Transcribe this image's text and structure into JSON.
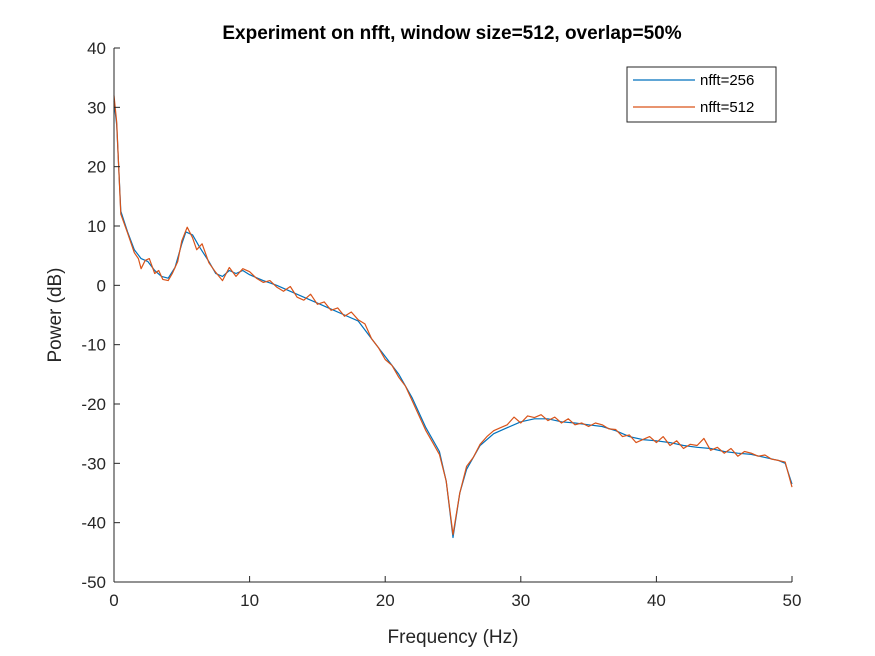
{
  "chart_data": {
    "type": "line",
    "title": "Experiment on nfft, window size=512, overlap=50%",
    "xlabel": "Frequency (Hz)",
    "ylabel": "Power (dB)",
    "xlim": [
      0,
      50
    ],
    "ylim": [
      -50,
      40
    ],
    "xticks": [
      0,
      10,
      20,
      30,
      40,
      50
    ],
    "xtick_labels": [
      "0",
      "10",
      "20",
      "30",
      "40",
      "50"
    ],
    "yticks": [
      40,
      30,
      20,
      10,
      0,
      -10,
      -20,
      -30,
      -40,
      -50
    ],
    "ytick_labels": [
      "40",
      "30",
      "20",
      "10",
      "0",
      "-10",
      "-20",
      "-30",
      "-40",
      "-50"
    ],
    "grid": false,
    "legend_position": "top-right",
    "series": [
      {
        "name": "nfft=256",
        "color": "#0072BD",
        "points": [
          [
            0,
            31
          ],
          [
            0.2,
            27
          ],
          [
            0.5,
            12.5
          ],
          [
            1.0,
            9
          ],
          [
            1.5,
            6
          ],
          [
            2.0,
            4.5
          ],
          [
            2.5,
            4
          ],
          [
            3.0,
            2.5
          ],
          [
            3.5,
            1.5
          ],
          [
            4.0,
            1.2
          ],
          [
            4.5,
            3
          ],
          [
            5.0,
            7
          ],
          [
            5.3,
            9
          ],
          [
            5.8,
            8.5
          ],
          [
            6.3,
            6.5
          ],
          [
            7.0,
            4
          ],
          [
            7.5,
            2
          ],
          [
            8.0,
            1.5
          ],
          [
            8.5,
            2.5
          ],
          [
            9.0,
            2
          ],
          [
            9.5,
            2.5
          ],
          [
            10.0,
            1.8
          ],
          [
            11.0,
            0.8
          ],
          [
            12.0,
            0
          ],
          [
            12.5,
            -0.5
          ],
          [
            13.0,
            -1
          ],
          [
            14.0,
            -2
          ],
          [
            15.0,
            -3
          ],
          [
            16.0,
            -4
          ],
          [
            17.0,
            -5
          ],
          [
            18.0,
            -6
          ],
          [
            19.0,
            -9
          ],
          [
            20.0,
            -12
          ],
          [
            21.0,
            -15
          ],
          [
            22.0,
            -19
          ],
          [
            23.0,
            -24
          ],
          [
            24.0,
            -28
          ],
          [
            24.5,
            -33
          ],
          [
            25.0,
            -42.5
          ],
          [
            25.5,
            -35
          ],
          [
            26.0,
            -31
          ],
          [
            26.5,
            -29
          ],
          [
            27.0,
            -27
          ],
          [
            28.0,
            -25
          ],
          [
            29.0,
            -24
          ],
          [
            30.0,
            -23
          ],
          [
            31.0,
            -22.5
          ],
          [
            32.0,
            -22.5
          ],
          [
            33.0,
            -23
          ],
          [
            34.0,
            -23.2
          ],
          [
            35.0,
            -23.5
          ],
          [
            36.0,
            -23.8
          ],
          [
            37.0,
            -24.5
          ],
          [
            38.0,
            -25.5
          ],
          [
            39.0,
            -26
          ],
          [
            40.0,
            -26.2
          ],
          [
            41.0,
            -26.5
          ],
          [
            42.0,
            -27
          ],
          [
            43.0,
            -27.3
          ],
          [
            44.0,
            -27.5
          ],
          [
            45.0,
            -28
          ],
          [
            46.0,
            -28.3
          ],
          [
            47.0,
            -28.5
          ],
          [
            48.0,
            -29
          ],
          [
            49.0,
            -29.5
          ],
          [
            49.5,
            -30
          ],
          [
            50.0,
            -33.5
          ]
        ]
      },
      {
        "name": "nfft=512",
        "color": "#D95319",
        "points": [
          [
            0,
            32
          ],
          [
            0.2,
            27.5
          ],
          [
            0.5,
            12
          ],
          [
            1.0,
            8.8
          ],
          [
            1.5,
            5.5
          ],
          [
            1.8,
            4.5
          ],
          [
            2.0,
            2.8
          ],
          [
            2.3,
            4.2
          ],
          [
            2.6,
            4.5
          ],
          [
            3.0,
            2
          ],
          [
            3.3,
            2.5
          ],
          [
            3.6,
            1
          ],
          [
            4.0,
            0.8
          ],
          [
            4.3,
            2
          ],
          [
            4.7,
            4
          ],
          [
            5.0,
            7.5
          ],
          [
            5.4,
            9.8
          ],
          [
            5.8,
            8
          ],
          [
            6.1,
            6
          ],
          [
            6.5,
            7
          ],
          [
            7.0,
            3.8
          ],
          [
            7.5,
            2.2
          ],
          [
            8.0,
            0.8
          ],
          [
            8.5,
            3
          ],
          [
            9.0,
            1.5
          ],
          [
            9.5,
            2.8
          ],
          [
            10.0,
            2.3
          ],
          [
            10.5,
            1.2
          ],
          [
            11.0,
            0.5
          ],
          [
            11.5,
            0.8
          ],
          [
            12.0,
            -0.3
          ],
          [
            12.5,
            -1
          ],
          [
            13.0,
            -0.2
          ],
          [
            13.5,
            -2
          ],
          [
            14.0,
            -2.5
          ],
          [
            14.5,
            -1.5
          ],
          [
            15.0,
            -3.2
          ],
          [
            15.5,
            -2.8
          ],
          [
            16.0,
            -4.2
          ],
          [
            16.5,
            -3.8
          ],
          [
            17.0,
            -5.2
          ],
          [
            17.5,
            -4.5
          ],
          [
            18.0,
            -5.8
          ],
          [
            18.5,
            -6.5
          ],
          [
            19.0,
            -9
          ],
          [
            19.5,
            -10.5
          ],
          [
            20.0,
            -12.5
          ],
          [
            20.5,
            -13.5
          ],
          [
            21.0,
            -15.5
          ],
          [
            21.5,
            -17
          ],
          [
            22.0,
            -19.5
          ],
          [
            22.5,
            -22
          ],
          [
            23.0,
            -24.5
          ],
          [
            23.5,
            -26.5
          ],
          [
            24.0,
            -28.5
          ],
          [
            24.5,
            -33
          ],
          [
            25.0,
            -42
          ],
          [
            25.5,
            -35
          ],
          [
            26.0,
            -30.5
          ],
          [
            26.5,
            -29
          ],
          [
            27.0,
            -26.8
          ],
          [
            27.5,
            -25.5
          ],
          [
            28.0,
            -24.5
          ],
          [
            28.5,
            -24
          ],
          [
            29.0,
            -23.5
          ],
          [
            29.5,
            -22.2
          ],
          [
            30.0,
            -23.2
          ],
          [
            30.5,
            -22
          ],
          [
            31.0,
            -22.3
          ],
          [
            31.5,
            -21.8
          ],
          [
            32.0,
            -22.8
          ],
          [
            32.5,
            -22.2
          ],
          [
            33.0,
            -23.2
          ],
          [
            33.5,
            -22.5
          ],
          [
            34.0,
            -23.5
          ],
          [
            34.5,
            -23.2
          ],
          [
            35.0,
            -23.8
          ],
          [
            35.5,
            -23.2
          ],
          [
            36.0,
            -23.5
          ],
          [
            36.5,
            -24.2
          ],
          [
            37.0,
            -24.3
          ],
          [
            37.5,
            -25.5
          ],
          [
            38.0,
            -25.2
          ],
          [
            38.5,
            -26.5
          ],
          [
            39.0,
            -26
          ],
          [
            39.5,
            -25.5
          ],
          [
            40.0,
            -26.5
          ],
          [
            40.5,
            -25.5
          ],
          [
            41.0,
            -27
          ],
          [
            41.5,
            -26.2
          ],
          [
            42.0,
            -27.5
          ],
          [
            42.5,
            -26.8
          ],
          [
            43.0,
            -27
          ],
          [
            43.5,
            -25.8
          ],
          [
            44.0,
            -27.8
          ],
          [
            44.5,
            -27.3
          ],
          [
            45.0,
            -28.3
          ],
          [
            45.5,
            -27.5
          ],
          [
            46.0,
            -28.8
          ],
          [
            46.5,
            -28
          ],
          [
            47.0,
            -28.3
          ],
          [
            47.5,
            -28.8
          ],
          [
            48.0,
            -28.6
          ],
          [
            48.5,
            -29.3
          ],
          [
            49.0,
            -29.5
          ],
          [
            49.5,
            -29.8
          ],
          [
            50.0,
            -34
          ]
        ]
      }
    ]
  }
}
